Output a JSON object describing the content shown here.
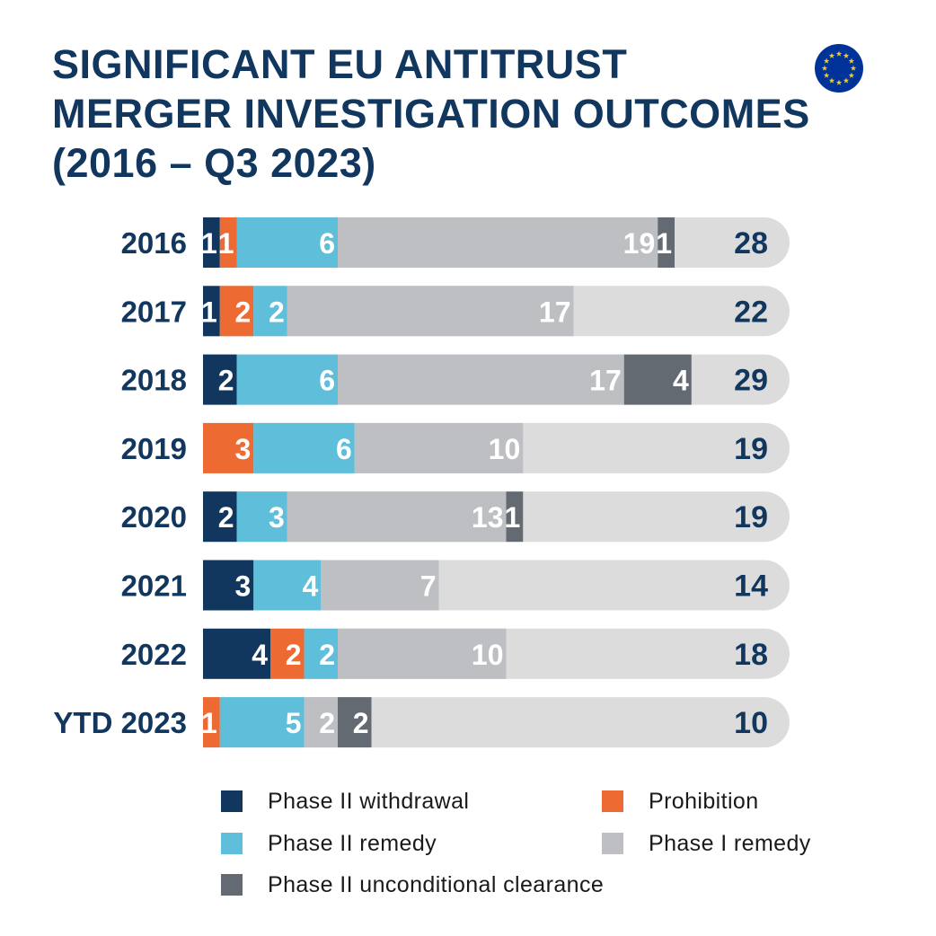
{
  "chart_data": {
    "type": "bar",
    "orientation": "horizontal",
    "stacked": true,
    "title": "SIGNIFICANT EU ANTITRUST MERGER INVESTIGATION OUTCOMES (2016 – Q3 2023)",
    "title_lines": [
      "SIGNIFICANT EU ANTITRUST",
      "MERGER INVESTIGATION OUTCOMES",
      "(2016 – Q3 2023)"
    ],
    "categories": [
      "2016",
      "2017",
      "2018",
      "2019",
      "2020",
      "2021",
      "2022",
      "YTD 2023"
    ],
    "totals": [
      28,
      22,
      29,
      19,
      19,
      14,
      18,
      10
    ],
    "series": [
      {
        "name": "Phase II withdrawal",
        "color": "#12375f",
        "values": [
          1,
          1,
          2,
          0,
          2,
          3,
          4,
          0
        ]
      },
      {
        "name": "Prohibition",
        "color": "#ee6a33",
        "values": [
          1,
          2,
          0,
          3,
          0,
          0,
          2,
          1
        ]
      },
      {
        "name": "Phase II remedy",
        "color": "#5fbfda",
        "values": [
          6,
          2,
          6,
          6,
          3,
          4,
          2,
          5
        ]
      },
      {
        "name": "Phase I remedy",
        "color": "#bdbfc2",
        "values": [
          19,
          17,
          17,
          10,
          13,
          7,
          10,
          2
        ]
      },
      {
        "name": "Phase II unconditional clearance",
        "color": "#646a72",
        "values": [
          1,
          0,
          4,
          0,
          1,
          0,
          0,
          2
        ]
      }
    ],
    "remainder_color": "#dcdcdd",
    "xlim": [
      0,
      35
    ],
    "legend_position": "bottom",
    "grid": false
  },
  "colors": {
    "title": "#12375f",
    "category_label": "#12375f",
    "total_label": "#12375f",
    "segment_label": "#ffffff",
    "eu_blue": "#003399",
    "eu_star": "#ffcc00"
  },
  "icons": {
    "flag": "eu-flag-icon"
  }
}
